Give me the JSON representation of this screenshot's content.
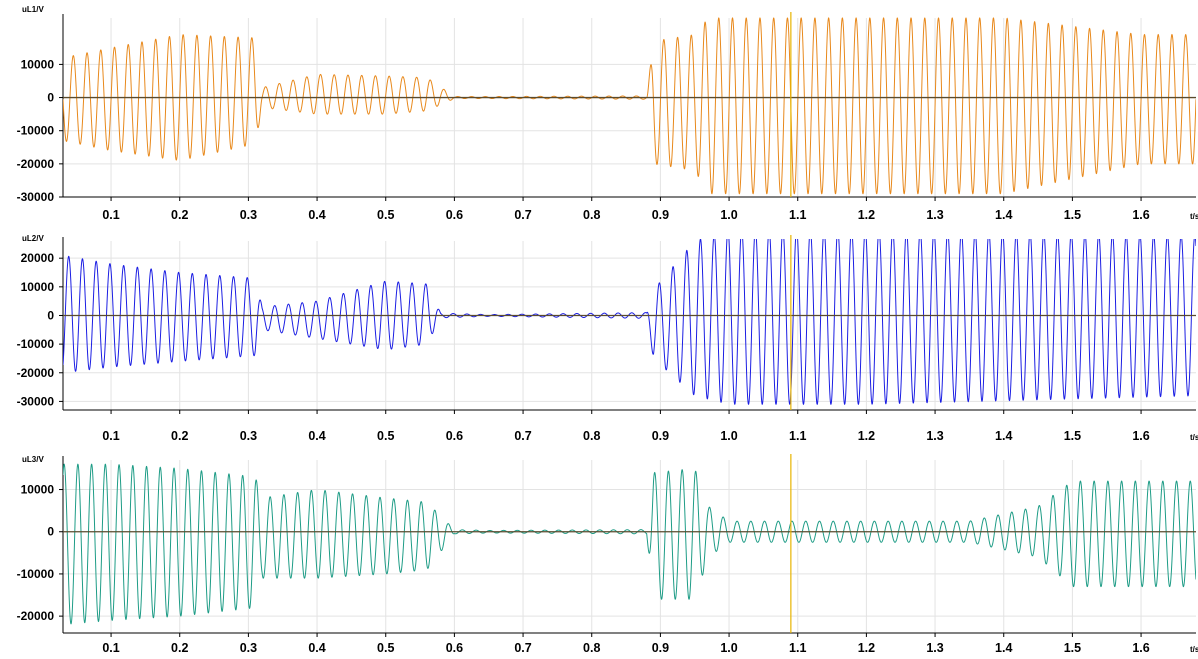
{
  "chart_data": [
    {
      "type": "line",
      "ylabel": "uL1/V",
      "xlabel": "t/s",
      "xlim": [
        0.03,
        1.68
      ],
      "ylim": [
        -30000,
        24000
      ],
      "yticks": [
        10000,
        0,
        -10000,
        -20000,
        -30000
      ],
      "xticks": [
        0.1,
        0.2,
        0.3,
        0.4,
        0.5,
        0.6,
        0.7,
        0.8,
        0.9,
        1.0,
        1.1,
        1.2,
        1.3,
        1.4,
        1.5,
        1.6
      ],
      "grid": true,
      "frequency_hz": 50,
      "cursor_x": 1.09,
      "series": [
        {
          "color": "#e8891c",
          "envelope": {
            "t": [
              0.03,
              0.1,
              0.2,
              0.31,
              0.32,
              0.4,
              0.5,
              0.56,
              0.6,
              0.65,
              0.88,
              0.89,
              0.95,
              0.97,
              1.4,
              1.6,
              1.68
            ],
            "max": [
              12000,
              15000,
              19000,
              18000,
              3000,
              7000,
              6500,
              6000,
              300,
              300,
              500,
              17000,
              19000,
              24000,
              24000,
              19000,
              19000
            ],
            "min": [
              -13000,
              -16000,
              -19000,
              -14000,
              -3000,
              -5000,
              -5000,
              -4000,
              -300,
              -300,
              -500,
              -20000,
              -22000,
              -29000,
              -29000,
              -20000,
              -20000
            ]
          }
        }
      ]
    },
    {
      "type": "line",
      "ylabel": "uL2/V",
      "xlabel": "t/s",
      "xlim": [
        0.03,
        1.68
      ],
      "ylim": [
        -33000,
        26000
      ],
      "yticks": [
        20000,
        10000,
        0,
        -10000,
        -20000,
        -30000
      ],
      "xticks": [
        0.1,
        0.2,
        0.3,
        0.4,
        0.5,
        0.6,
        0.7,
        0.8,
        0.9,
        1.0,
        1.1,
        1.2,
        1.3,
        1.4,
        1.5,
        1.6
      ],
      "grid": true,
      "frequency_hz": 50,
      "cursor_x": 1.09,
      "series": [
        {
          "color": "#1b1ee3",
          "envelope": {
            "t": [
              0.03,
              0.1,
              0.2,
              0.31,
              0.32,
              0.4,
              0.5,
              0.56,
              0.58,
              0.65,
              0.88,
              0.89,
              0.95,
              1.0,
              1.2,
              1.68
            ],
            "max": [
              21000,
              18000,
              15000,
              13000,
              3000,
              5000,
              12000,
              11000,
              800,
              300,
              1000,
              9000,
              26000,
              30000,
              30000,
              28000
            ],
            "min": [
              -20000,
              -18000,
              -16000,
              -14000,
              -5000,
              -8000,
              -12000,
              -10000,
              -800,
              -300,
              -1000,
              -15000,
              -28000,
              -31000,
              -31000,
              -28000
            ]
          }
        }
      ]
    },
    {
      "type": "line",
      "ylabel": "uL3/V",
      "xlabel": "t/s",
      "xlim": [
        0.03,
        1.68
      ],
      "ylim": [
        -24000,
        17000
      ],
      "yticks": [
        10000,
        0,
        -10000,
        -20000
      ],
      "xticks": [
        0.1,
        0.2,
        0.3,
        0.4,
        0.5,
        0.6,
        0.7,
        0.8,
        0.9,
        1.0,
        1.1,
        1.2,
        1.3,
        1.4,
        1.5,
        1.6
      ],
      "grid": true,
      "frequency_hz": 50,
      "cursor_x": 1.09,
      "series": [
        {
          "color": "#1e9c86",
          "envelope": {
            "t": [
              0.03,
              0.1,
              0.2,
              0.31,
              0.32,
              0.4,
              0.5,
              0.56,
              0.6,
              0.65,
              0.88,
              0.89,
              0.95,
              0.97,
              1.0,
              1.35,
              1.45,
              1.5,
              1.68
            ],
            "max": [
              16000,
              16000,
              15000,
              13000,
              8000,
              10000,
              8000,
              7000,
              500,
              300,
              500,
              14000,
              15000,
              6000,
              2500,
              2500,
              6000,
              12000,
              12000
            ],
            "min": [
              -22000,
              -21000,
              -20000,
              -18000,
              -11000,
              -11000,
              -10000,
              -9000,
              -500,
              -300,
              -500,
              -16000,
              -16000,
              -6000,
              -2500,
              -2500,
              -6000,
              -13000,
              -13000
            ]
          }
        }
      ]
    }
  ]
}
